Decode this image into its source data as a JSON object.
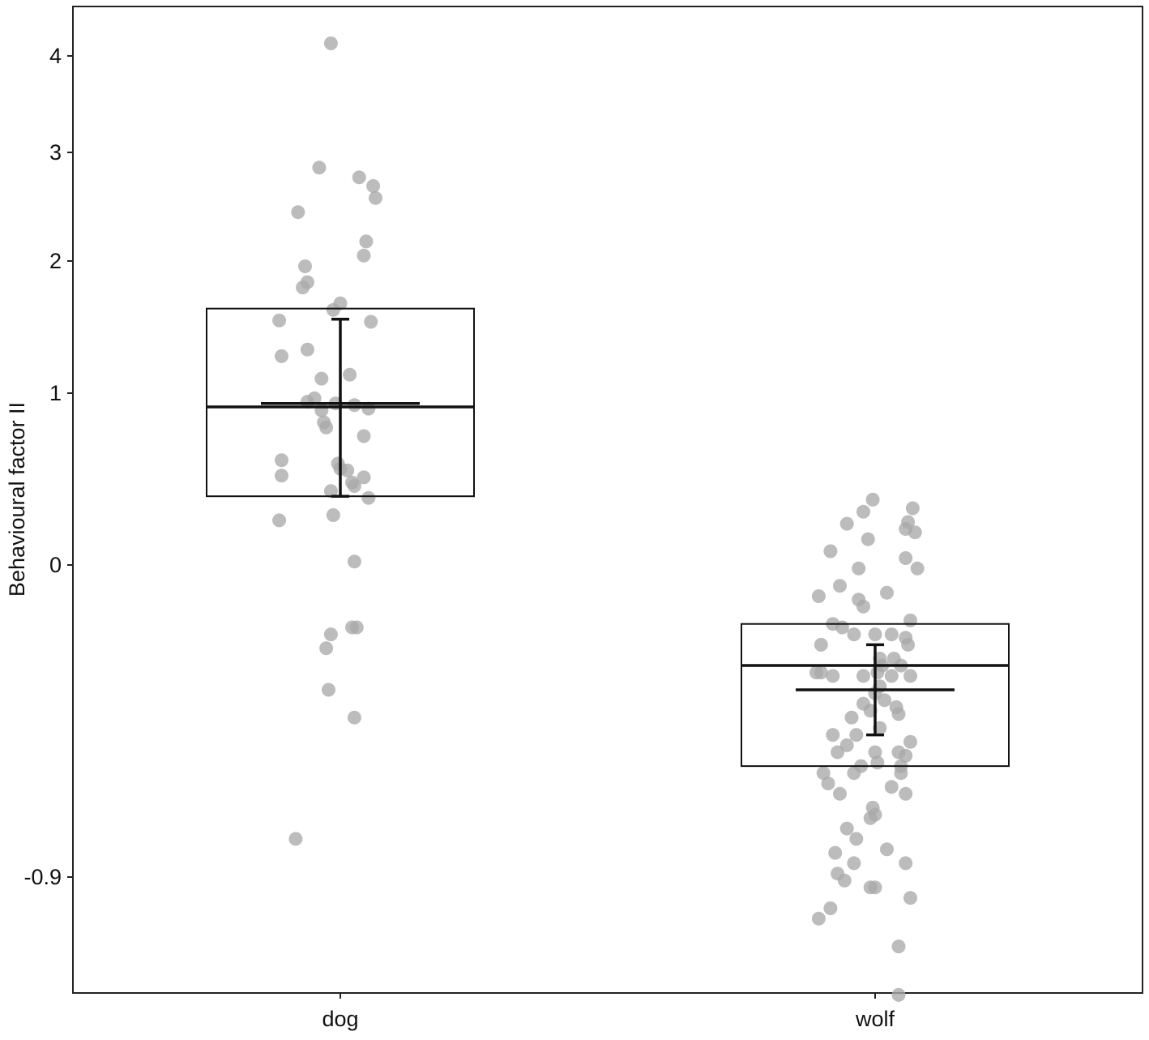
{
  "chart_data": {
    "type": "scatter",
    "ylabel": "Behavioural factor II",
    "xlabel": "",
    "categories": [
      "dog",
      "wolf"
    ],
    "y_ticks": [
      {
        "value": 4,
        "label": "4"
      },
      {
        "value": 3,
        "label": "3"
      },
      {
        "value": 2,
        "label": "2"
      },
      {
        "value": 1,
        "label": "1"
      },
      {
        "value": 0,
        "label": "0"
      },
      {
        "value": -0.9,
        "label": "-0.9"
      }
    ],
    "y_axis_mapping": [
      [
        4.0,
        69
      ],
      [
        3.0,
        188
      ],
      [
        2.0,
        322
      ],
      [
        1.0,
        485
      ],
      [
        0.0,
        697
      ],
      [
        -0.9,
        1082
      ]
    ],
    "ylim": [
      -1.2,
      4.14
    ],
    "grid": false,
    "legend": "none",
    "point_color": "#a9a9a9",
    "series": [
      {
        "category": "dog",
        "box": {
          "low": 0.4,
          "high": 1.64,
          "center": 0.92
        },
        "mean": 0.94,
        "error_bar": {
          "low": 0.4,
          "high": 1.56
        },
        "points": [
          [
            -0.04,
            4.13
          ],
          [
            -0.09,
            2.86
          ],
          [
            0.08,
            2.77
          ],
          [
            0.14,
            2.69
          ],
          [
            0.15,
            2.58
          ],
          [
            -0.18,
            2.45
          ],
          [
            0.11,
            2.18
          ],
          [
            0.1,
            2.05
          ],
          [
            -0.15,
            1.96
          ],
          [
            -0.14,
            1.84
          ],
          [
            -0.16,
            1.8
          ],
          [
            0.0,
            1.68
          ],
          [
            -0.03,
            1.63
          ],
          [
            -0.26,
            1.55
          ],
          [
            0.13,
            1.54
          ],
          [
            -0.14,
            1.33
          ],
          [
            -0.25,
            1.28
          ],
          [
            0.04,
            1.14
          ],
          [
            -0.08,
            1.11
          ],
          [
            -0.11,
            0.97
          ],
          [
            -0.14,
            0.95
          ],
          [
            -0.02,
            0.94
          ],
          [
            0.06,
            0.93
          ],
          [
            -0.08,
            0.9
          ],
          [
            0.12,
            0.91
          ],
          [
            -0.07,
            0.83
          ],
          [
            -0.06,
            0.8
          ],
          [
            0.1,
            0.75
          ],
          [
            -0.25,
            0.61
          ],
          [
            -0.01,
            0.59
          ],
          [
            0.0,
            0.56
          ],
          [
            0.03,
            0.55
          ],
          [
            -0.25,
            0.52
          ],
          [
            0.1,
            0.51
          ],
          [
            0.05,
            0.48
          ],
          [
            0.06,
            0.46
          ],
          [
            -0.04,
            0.43
          ],
          [
            0.12,
            0.39
          ],
          [
            -0.03,
            0.29
          ],
          [
            -0.26,
            0.26
          ],
          [
            0.06,
            0.02
          ],
          [
            0.05,
            -0.18
          ],
          [
            0.07,
            -0.18
          ],
          [
            -0.04,
            -0.2
          ],
          [
            -0.06,
            -0.24
          ],
          [
            -0.05,
            -0.36
          ],
          [
            0.06,
            -0.44
          ],
          [
            -0.19,
            -0.79
          ]
        ]
      },
      {
        "category": "wolf",
        "box": {
          "low": -0.58,
          "high": -0.17,
          "center": -0.29
        },
        "mean": -0.36,
        "error_bar": {
          "low": -0.49,
          "high": -0.23
        },
        "points": [
          [
            -0.01,
            0.38
          ],
          [
            0.16,
            0.33
          ],
          [
            -0.05,
            0.31
          ],
          [
            -0.12,
            0.24
          ],
          [
            0.14,
            0.25
          ],
          [
            0.13,
            0.21
          ],
          [
            0.17,
            0.19
          ],
          [
            -0.03,
            0.15
          ],
          [
            -0.19,
            0.08
          ],
          [
            0.13,
            0.04
          ],
          [
            -0.07,
            -0.01
          ],
          [
            0.18,
            -0.01
          ],
          [
            -0.15,
            -0.06
          ],
          [
            0.05,
            -0.08
          ],
          [
            -0.24,
            -0.09
          ],
          [
            -0.07,
            -0.1
          ],
          [
            -0.05,
            -0.12
          ],
          [
            0.15,
            -0.16
          ],
          [
            -0.18,
            -0.17
          ],
          [
            -0.14,
            -0.18
          ],
          [
            -0.09,
            -0.2
          ],
          [
            0.0,
            -0.2
          ],
          [
            0.07,
            -0.2
          ],
          [
            0.13,
            -0.21
          ],
          [
            -0.23,
            -0.23
          ],
          [
            0.14,
            -0.23
          ],
          [
            0.02,
            -0.27
          ],
          [
            0.08,
            -0.27
          ],
          [
            0.03,
            -0.29
          ],
          [
            0.11,
            -0.29
          ],
          [
            0.01,
            -0.31
          ],
          [
            -0.25,
            -0.31
          ],
          [
            -0.23,
            -0.31
          ],
          [
            -0.18,
            -0.32
          ],
          [
            -0.05,
            -0.32
          ],
          [
            0.07,
            -0.32
          ],
          [
            0.15,
            -0.32
          ],
          [
            0.02,
            -0.35
          ],
          [
            0.0,
            -0.37
          ],
          [
            0.04,
            -0.39
          ],
          [
            -0.05,
            -0.4
          ],
          [
            0.09,
            -0.41
          ],
          [
            -0.02,
            -0.42
          ],
          [
            0.1,
            -0.43
          ],
          [
            -0.1,
            -0.44
          ],
          [
            0.02,
            -0.47
          ],
          [
            -0.18,
            -0.49
          ],
          [
            -0.08,
            -0.49
          ],
          [
            -0.12,
            -0.52
          ],
          [
            0.15,
            -0.51
          ],
          [
            0.0,
            -0.54
          ],
          [
            -0.16,
            -0.54
          ],
          [
            0.1,
            -0.54
          ],
          [
            0.13,
            -0.55
          ],
          [
            0.01,
            -0.57
          ],
          [
            0.11,
            -0.58
          ],
          [
            -0.06,
            -0.58
          ],
          [
            -0.09,
            -0.6
          ],
          [
            -0.22,
            -0.6
          ],
          [
            0.11,
            -0.6
          ],
          [
            -0.2,
            -0.63
          ],
          [
            0.07,
            -0.64
          ],
          [
            -0.15,
            -0.66
          ],
          [
            0.13,
            -0.66
          ],
          [
            -0.01,
            -0.7
          ],
          [
            0.0,
            -0.72
          ],
          [
            -0.02,
            -0.73
          ],
          [
            -0.12,
            -0.76
          ],
          [
            -0.08,
            -0.79
          ],
          [
            0.05,
            -0.82
          ],
          [
            -0.17,
            -0.83
          ],
          [
            -0.09,
            -0.86
          ],
          [
            0.13,
            -0.86
          ],
          [
            -0.16,
            -0.89
          ],
          [
            -0.13,
            -0.91
          ],
          [
            -0.02,
            -0.93
          ],
          [
            0.0,
            -0.93
          ],
          [
            0.15,
            -0.96
          ],
          [
            -0.19,
            -0.99
          ],
          [
            -0.24,
            -1.02
          ],
          [
            0.1,
            -1.1
          ],
          [
            0.1,
            -1.24
          ]
        ]
      }
    ]
  }
}
